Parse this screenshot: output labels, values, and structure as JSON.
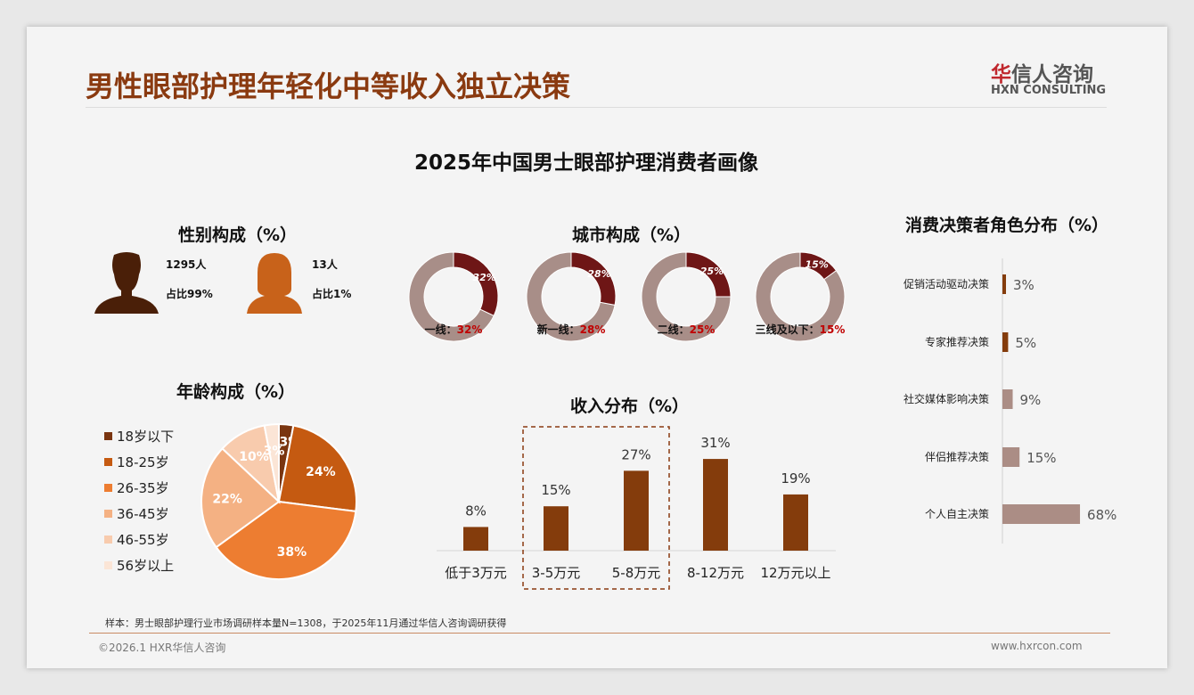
{
  "header": {
    "title": "男性眼部护理年轻化中等收入独立决策",
    "logo_cn_accent": "华",
    "logo_cn": "信人咨询",
    "logo_en": "HXN CONSULTING"
  },
  "main_title": "2025年中国男士眼部护理消费者画像",
  "gender": {
    "title": "性别构成（%）",
    "male_count": "1295人",
    "male_share": "占比99%",
    "female_count": "13人",
    "female_share": "占比1%"
  },
  "colors": {
    "male": "#4a1f08",
    "female": "#c8621a",
    "donut_main": "#6e1616",
    "donut_rest": "#a88e88",
    "income": "#843c0c",
    "decision": "#ab8d85",
    "decision_dark": "#843c0c"
  },
  "chart_data": [
    {
      "type": "pie",
      "title": "城市构成（%）",
      "donut": true,
      "categories": [
        "一线：",
        "新一线：",
        "二线：",
        "三线及以下："
      ],
      "values": [
        32,
        28,
        25,
        15
      ],
      "labels": [
        "32%",
        "28%",
        "25%",
        "15%"
      ]
    },
    {
      "type": "pie",
      "title": "年龄构成（%）",
      "categories": [
        "18岁以下",
        "18-25岁",
        "26-35岁",
        "36-45岁",
        "46-55岁",
        "56岁以上"
      ],
      "values": [
        3,
        24,
        38,
        22,
        10,
        3
      ],
      "labels": [
        "3%",
        "24%",
        "38%",
        "22%",
        "10%",
        "3%"
      ],
      "colors": [
        "#7a3510",
        "#c55a11",
        "#ed7d31",
        "#f4b183",
        "#f8cbad",
        "#fbe5d6"
      ],
      "legend": "left"
    },
    {
      "type": "bar",
      "title": "收入分布（%）",
      "categories": [
        "低于3万元",
        "3-5万元",
        "5-8万元",
        "8-12万元",
        "12万元以上"
      ],
      "values": [
        8,
        15,
        27,
        31,
        19
      ],
      "labels": [
        "8%",
        "15%",
        "27%",
        "31%",
        "19%"
      ],
      "highlight": [
        "3-5万元",
        "5-8万元"
      ]
    },
    {
      "type": "bar",
      "orientation": "horizontal",
      "title": "消费决策者角色分布（%）",
      "categories": [
        "促销活动驱动决策",
        "专家推荐决策",
        "社交媒体影响决策",
        "伴侣推荐决策",
        "个人自主决策"
      ],
      "values": [
        3,
        5,
        9,
        15,
        68
      ],
      "labels": [
        "3%",
        "5%",
        "9%",
        "15%",
        "68%"
      ]
    }
  ],
  "footer": {
    "note": "样本：男士眼部护理行业市场调研样本量N=1308，于2025年11月通过华信人咨询调研获得",
    "copyright": "©2026.1 HXR华信人咨询",
    "website": "www.hxrcon.com"
  }
}
